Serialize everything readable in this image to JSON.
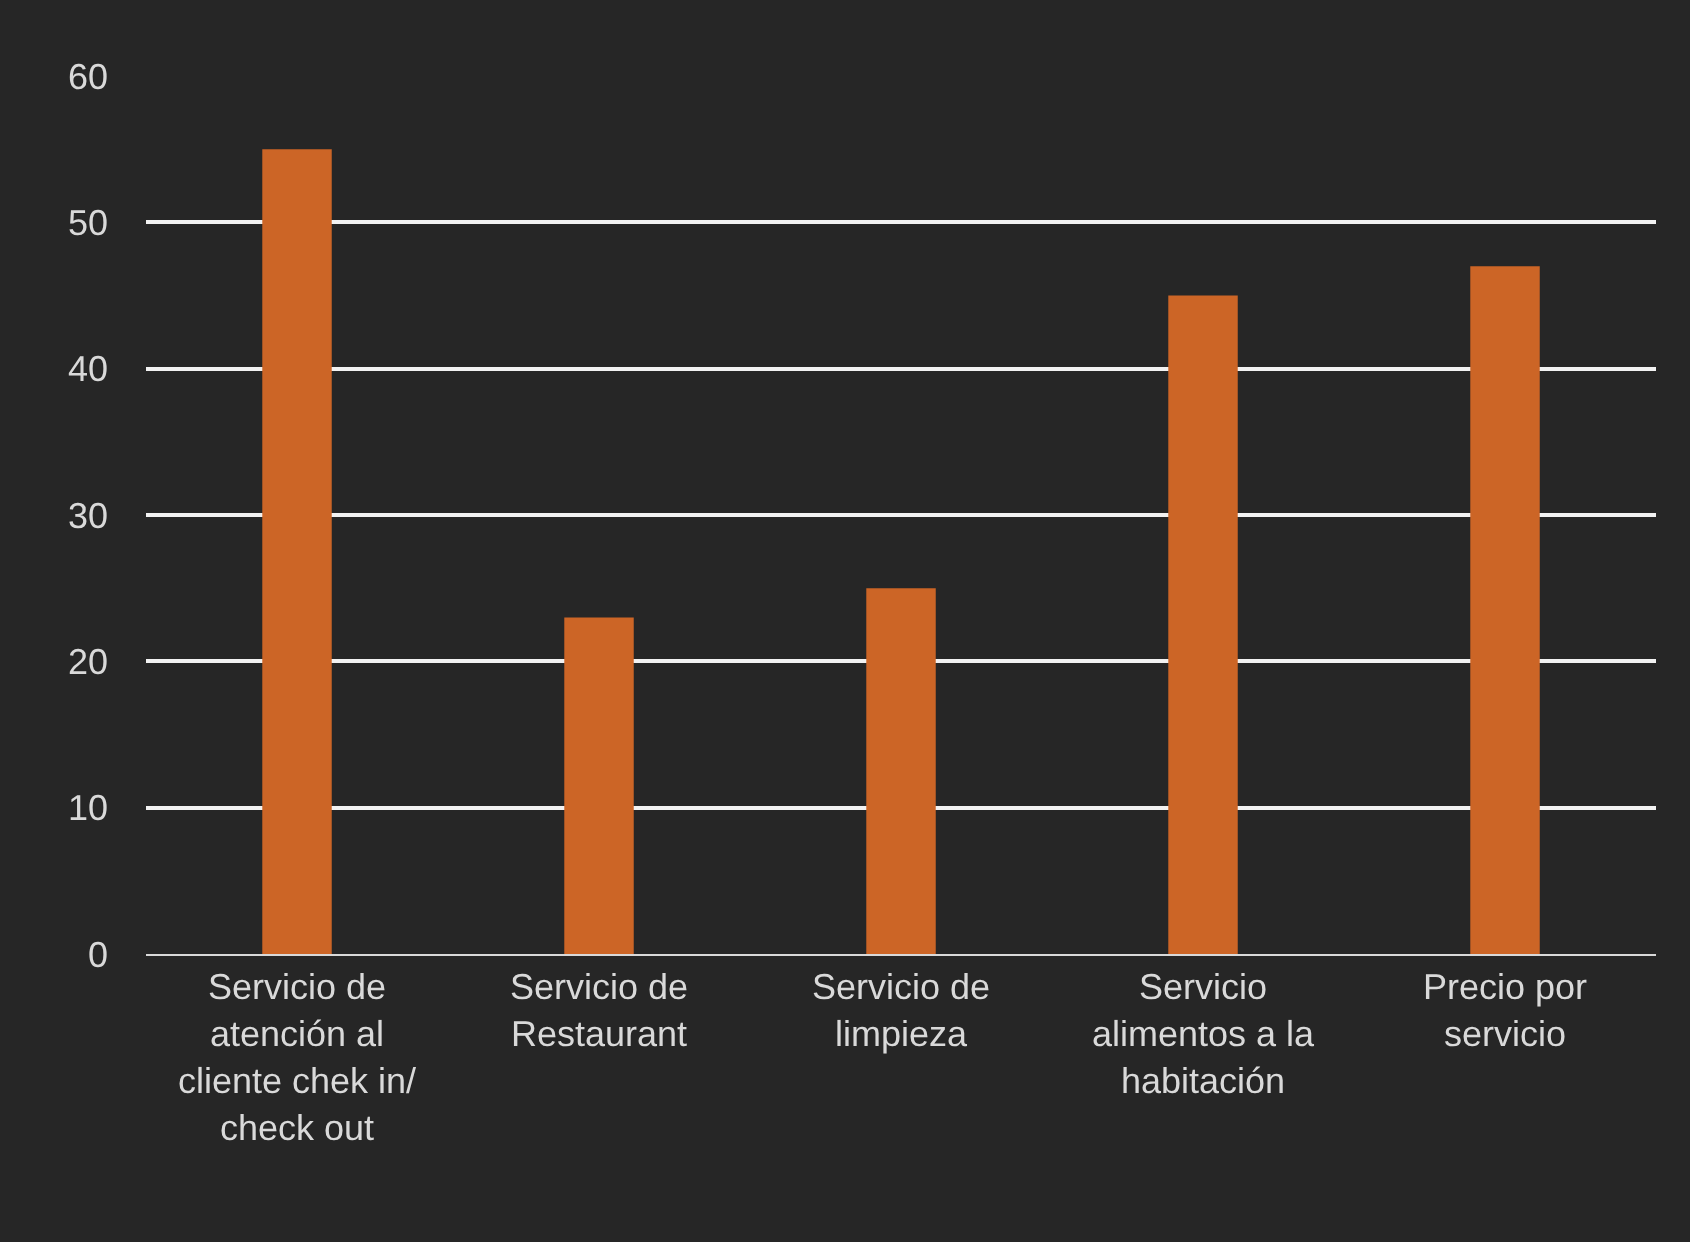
{
  "chart_data": {
    "type": "bar",
    "categories": [
      "Servicio de atención al cliente chek in/ check out",
      "Servicio de Restaurant",
      "Servicio de limpieza",
      "Servicio alimentos a la habitación",
      "Precio por servicio"
    ],
    "values": [
      55,
      23,
      25,
      45,
      47
    ],
    "color": "#cc6526",
    "ylim": [
      0,
      60
    ],
    "yticks": [
      0,
      10,
      20,
      30,
      40,
      50,
      60
    ],
    "grid": "y"
  }
}
